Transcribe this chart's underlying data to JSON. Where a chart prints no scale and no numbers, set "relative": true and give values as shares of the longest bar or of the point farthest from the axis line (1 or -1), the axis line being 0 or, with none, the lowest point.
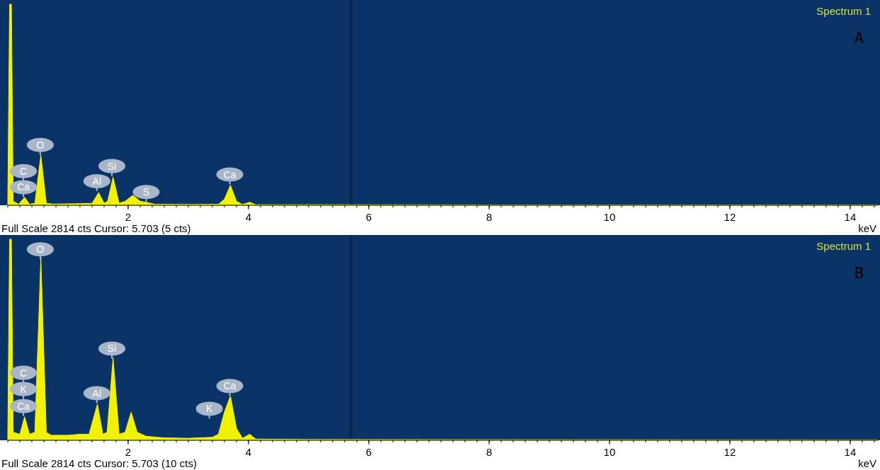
{
  "chart_data": [
    {
      "type": "area",
      "title": "Spectrum 1",
      "subtitle": "A",
      "xlabel": "keV",
      "relative": true,
      "xlim": [
        0,
        14.46
      ],
      "xticks": [
        2,
        4,
        6,
        8,
        10,
        12,
        14
      ],
      "ref_lines": [
        {
          "axis": "x",
          "value": 5.703,
          "color": "#0b2547"
        }
      ],
      "annotations": [
        "Full Scale 2814 cts Cursor: 5.703  (5 cts)",
        {
          "text": "O",
          "x": 0.54,
          "y": 0.3
        },
        {
          "text": "C",
          "x": 0.26,
          "y": 0.17
        },
        {
          "text": "Ca",
          "x": 0.26,
          "y": 0.09
        },
        {
          "text": "Si",
          "x": 1.73,
          "y": 0.195
        },
        {
          "text": "Al",
          "x": 1.48,
          "y": 0.12
        },
        {
          "text": "S",
          "x": 2.3,
          "y": 0.066
        },
        {
          "text": "Ca",
          "x": 3.69,
          "y": 0.153
        }
      ],
      "series": [
        {
          "color": "#f2f200",
          "x": [
            0,
            0.03,
            0.06,
            0.09,
            0.18,
            0.28,
            0.36,
            0.45,
            0.55,
            0.64,
            0.75,
            1.2,
            1.4,
            1.51,
            1.6,
            1.66,
            1.75,
            1.85,
            1.95,
            2.08,
            2.2,
            2.3,
            2.45,
            3.0,
            3.5,
            3.6,
            3.7,
            3.8,
            3.9,
            4.02,
            4.12,
            5.0,
            8,
            14.46
          ],
          "values": [
            0.02,
            1,
            1,
            0.02,
            0.005,
            0.04,
            0.005,
            0.01,
            0.25,
            0.01,
            0.006,
            0.008,
            0.01,
            0.063,
            0.01,
            0.02,
            0.14,
            0.01,
            0.02,
            0.05,
            0.02,
            0.015,
            0.005,
            0.004,
            0.005,
            0.03,
            0.1,
            0.02,
            0.004,
            0.015,
            0.003,
            0.003,
            0.002,
            0.002
          ]
        }
      ]
    },
    {
      "type": "area",
      "title": "Spectrum 1",
      "subtitle": "B",
      "xlabel": "keV",
      "relative": true,
      "xlim": [
        0,
        14.46
      ],
      "xticks": [
        2,
        4,
        6,
        8,
        10,
        12,
        14
      ],
      "ref_lines": [
        {
          "axis": "x",
          "value": 5.703,
          "color": "#0b2547"
        }
      ],
      "annotations": [
        "Full Scale 2814 cts Cursor: 5.703  (10 cts)",
        {
          "text": "O",
          "x": 0.54,
          "y": 0.95
        },
        {
          "text": "C",
          "x": 0.26,
          "y": 0.336
        },
        {
          "text": "K",
          "x": 0.26,
          "y": 0.255
        },
        {
          "text": "Ca",
          "x": 0.26,
          "y": 0.17
        },
        {
          "text": "Al",
          "x": 1.48,
          "y": 0.234
        },
        {
          "text": "Si",
          "x": 1.73,
          "y": 0.456
        },
        {
          "text": "Ca",
          "x": 3.69,
          "y": 0.27
        },
        {
          "text": "K",
          "x": 3.35,
          "y": 0.157
        }
      ],
      "series": [
        {
          "color": "#f2f200",
          "x": [
            0,
            0.03,
            0.06,
            0.09,
            0.2,
            0.28,
            0.36,
            0.45,
            0.55,
            0.64,
            0.72,
            1.0,
            1.2,
            1.35,
            1.49,
            1.58,
            1.65,
            1.75,
            1.85,
            1.95,
            2.05,
            2.15,
            2.3,
            2.6,
            3.0,
            3.4,
            3.5,
            3.6,
            3.7,
            3.8,
            3.9,
            4.02,
            4.12,
            5.0,
            8,
            14.46
          ],
          "values": [
            0.02,
            1,
            1,
            0.04,
            0.03,
            0.117,
            0.03,
            0.04,
            0.91,
            0.04,
            0.025,
            0.025,
            0.03,
            0.03,
            0.18,
            0.03,
            0.04,
            0.41,
            0.03,
            0.04,
            0.14,
            0.04,
            0.02,
            0.012,
            0.01,
            0.015,
            0.03,
            0.14,
            0.22,
            0.06,
            0.01,
            0.03,
            0.006,
            0.004,
            0.003,
            0.002
          ]
        }
      ]
    }
  ]
}
